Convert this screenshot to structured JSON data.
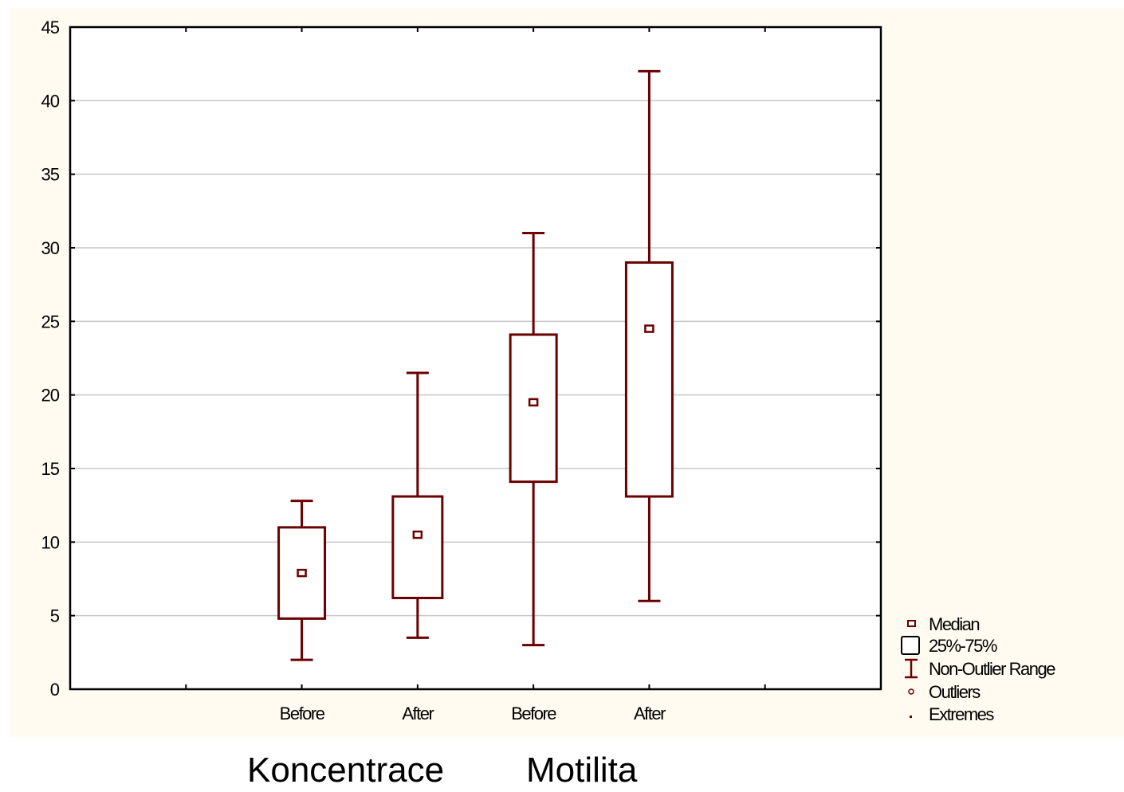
{
  "chart_data": {
    "type": "box",
    "categories": [
      "Before",
      "After",
      "Before",
      "After"
    ],
    "groups": [
      "Koncentrace",
      "Motilita"
    ],
    "boxes": [
      {
        "group": "Koncentrace",
        "category": "Before",
        "whisker_low": 2,
        "q1": 4.8,
        "median": 7.9,
        "q3": 11.0,
        "whisker_high": 12.8
      },
      {
        "group": "Koncentrace",
        "category": "After",
        "whisker_low": 3.5,
        "q1": 6.2,
        "median": 10.5,
        "q3": 13.1,
        "whisker_high": 21.5
      },
      {
        "group": "Motilita",
        "category": "Before",
        "whisker_low": 3.0,
        "q1": 14.1,
        "median": 19.5,
        "q3": 24.1,
        "whisker_high": 31.0
      },
      {
        "group": "Motilita",
        "category": "After",
        "whisker_low": 6.0,
        "q1": 13.1,
        "median": 24.5,
        "q3": 29.0,
        "whisker_high": 42.0
      }
    ],
    "yticks": [
      "0",
      "5",
      "10",
      "15",
      "20",
      "25",
      "30",
      "35",
      "40",
      "45"
    ],
    "ylim": [
      0,
      45
    ],
    "grid": true,
    "legend": {
      "placement": "bottom-right",
      "items": [
        "Median",
        "25%-75%",
        "Non-Outlier Range",
        "Outliers",
        "Extremes"
      ]
    },
    "colors": {
      "series": "#6b0000",
      "grid": "#c8c8c8",
      "plot_bg": "#ffffff",
      "outer_bg": "#fffbf0"
    }
  }
}
